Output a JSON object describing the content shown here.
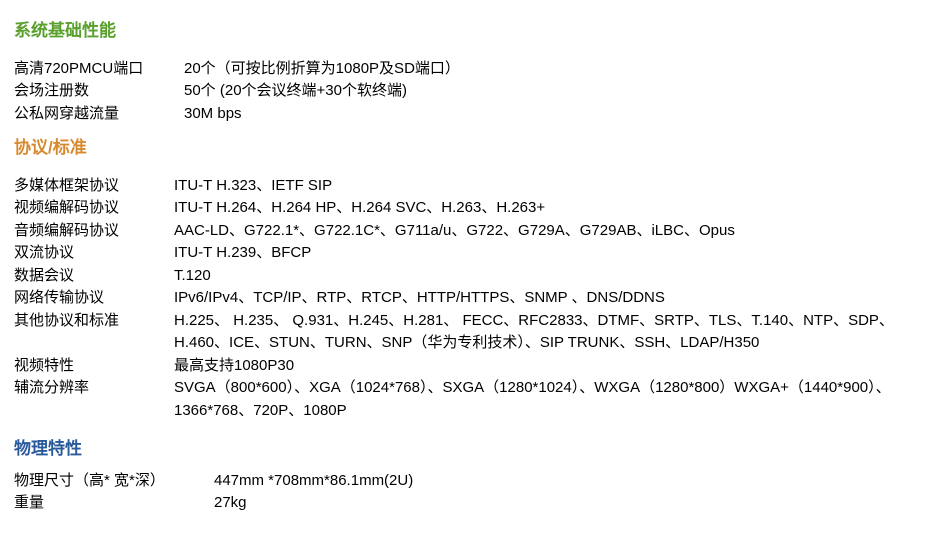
{
  "section1": {
    "title": "系统基础性能",
    "rows": [
      {
        "label": "高清720PMCU端口",
        "value": "20个（可按比例折算为1080P及SD端口）"
      },
      {
        "label": "会场注册数",
        "value": "50个 (20个会议终端+30个软终端)"
      },
      {
        "label": "公私网穿越流量",
        "value": "30M bps"
      }
    ]
  },
  "section2": {
    "title": "协议/标准",
    "rows": [
      {
        "label": "多媒体框架协议",
        "value": "ITU-T H.323、IETF SIP"
      },
      {
        "label": "视频编解码协议",
        "value": "ITU-T H.264、H.264 HP、H.264 SVC、H.263、H.263+"
      },
      {
        "label": "音频编解码协议",
        "value": "AAC-LD、G722.1*、G722.1C*、G711a/u、G722、G729A、G729AB、iLBC、Opus"
      },
      {
        "label": "双流协议",
        "value": "ITU-T H.239、BFCP"
      },
      {
        "label": "数据会议",
        "value": "T.120"
      },
      {
        "label": "网络传输协议",
        "value": "IPv6/IPv4、TCP/IP、RTP、RTCP、HTTP/HTTPS、SNMP 、DNS/DDNS"
      },
      {
        "label": "其他协议和标准",
        "value": " H.225、 H.235、 Q.931、H.245、H.281、 FECC、RFC2833、DTMF、SRTP、TLS、T.140、NTP、SDP、H.460、ICE、STUN、TURN、SNP（华为专利技术）、SIP TRUNK、SSH、LDAP/H350"
      },
      {
        "label": "视频特性",
        "value": "最高支持1080P30"
      },
      {
        "label": "辅流分辨率",
        "value": "SVGA（800*600）、XGA（1024*768）、SXGA（1280*1024）、WXGA（1280*800）WXGA+（1440*900）、1366*768、720P、1080P"
      }
    ]
  },
  "section3": {
    "title": "物理特性",
    "rows": [
      {
        "label": "物理尺寸（高* 宽*深）",
        "value": "447mm *708mm*86.1mm(2U)"
      },
      {
        "label": "重量",
        "value": "27kg"
      }
    ]
  },
  "colors": {
    "green": "#5aa02c",
    "orange": "#d88a2f",
    "blue": "#2a5a9c"
  }
}
